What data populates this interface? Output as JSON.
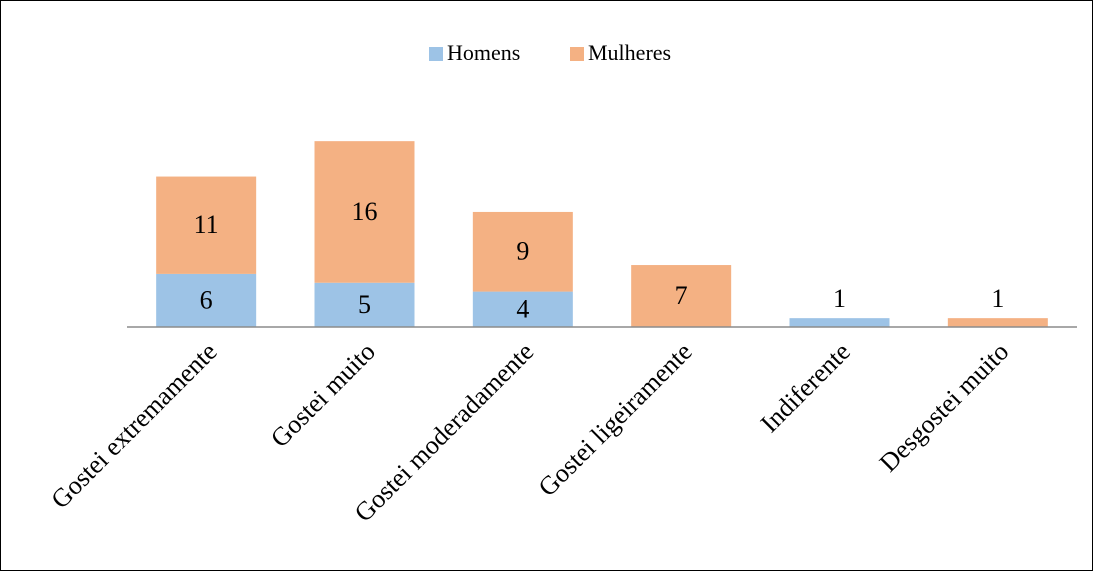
{
  "chart_data": {
    "type": "stacked_bar",
    "categories": [
      "Gostei extremamente",
      "Gostei muito",
      "Gostei moderadamente",
      "Gostei ligeiramente",
      "Indiferente",
      "Desgostei muito"
    ],
    "series": [
      {
        "name": "Homens",
        "color": "#9dc3e6",
        "values": [
          6,
          5,
          4,
          0,
          1,
          0
        ]
      },
      {
        "name": "Mulheres",
        "color": "#f4b183",
        "values": [
          11,
          16,
          9,
          7,
          0,
          1
        ]
      }
    ],
    "legend": "top"
  }
}
